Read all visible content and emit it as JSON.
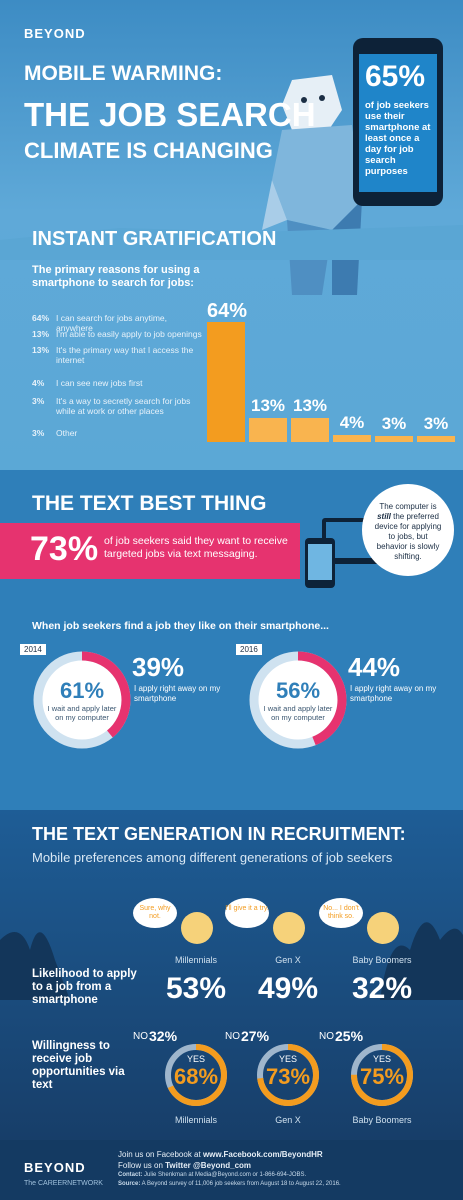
{
  "brand": {
    "logo": "BEYOND",
    "tagline": "The CAREERNETWORK"
  },
  "hero": {
    "kicker": "MOBILE WARMING:",
    "title_line1": "THE JOB SEARCH",
    "title_line2": "CLIMATE IS CHANGING",
    "phone_stat": "65%",
    "phone_text": "of job seekers use their smartphone at least once a day for job search purposes"
  },
  "gratification": {
    "heading": "INSTANT GRATIFICATION",
    "subheading": "The primary reasons for using a smartphone to search for jobs:",
    "reasons": [
      {
        "pct": "64%",
        "text": "I can search for jobs anytime, anywhere"
      },
      {
        "pct": "13%",
        "text": "I'm able to easily apply to job openings"
      },
      {
        "pct": "13%",
        "text": "It's the primary way that I access the internet"
      },
      {
        "pct": "4%",
        "text": "I can see new jobs first"
      },
      {
        "pct": "3%",
        "text": "It's a way to secretly search for jobs while at work or other places"
      },
      {
        "pct": "3%",
        "text": "Other"
      }
    ]
  },
  "chart_data": {
    "type": "bar",
    "categories": [
      "I can search for jobs anytime, anywhere",
      "I'm able to easily apply to job openings",
      "It's the primary way that I access the internet",
      "I can see new jobs first",
      "It's a way to secretly search for jobs while at work or other places",
      "Other"
    ],
    "values": [
      64,
      13,
      13,
      4,
      3,
      3
    ],
    "labels": [
      "64%",
      "13%",
      "13%",
      "4%",
      "3%",
      "3%"
    ]
  },
  "text_best": {
    "heading": "THE TEXT BEST THING",
    "stat": "73%",
    "text": "of job seekers said they want to receive targeted jobs via text messaging.",
    "bubble_pre": "The computer is ",
    "bubble_em": "still",
    "bubble_post": " the preferred device for applying to jobs, but behavior is slowly shifting."
  },
  "apply": {
    "intro": "When job seekers find a job they like on their smartphone...",
    "years": [
      {
        "year": "2014",
        "later_pct": "61%",
        "later_text": "I wait and apply later on my computer",
        "now_pct": "39%",
        "now_text": "I apply right away on my smartphone",
        "now_value": 39
      },
      {
        "year": "2016",
        "later_pct": "56%",
        "later_text": "I wait and apply later on my computer",
        "now_pct": "44%",
        "now_text": "I apply right away on my smartphone",
        "now_value": 44
      }
    ]
  },
  "generation": {
    "heading": "THE TEXT GENERATION IN RECRUITMENT:",
    "subheading": "Mobile preferences among different generations of job seekers",
    "likelihood_label": "Likelihood to apply to a job from a smartphone",
    "willingness_label": "Willingness to receive job opportunities via text",
    "groups": [
      {
        "name": "Millennials",
        "quote": "Sure, why not.",
        "likelihood": "53%",
        "no_label": "NO",
        "no_pct": "32%",
        "yes_label": "YES",
        "yes_pct": "68%",
        "yes_value": 68
      },
      {
        "name": "Gen X",
        "quote": "I'll give it a try.",
        "likelihood": "49%",
        "no_label": "NO",
        "no_pct": "27%",
        "yes_label": "YES",
        "yes_pct": "73%",
        "yes_value": 73
      },
      {
        "name": "Baby Boomers",
        "quote": "No... I don't think so.",
        "likelihood": "32%",
        "no_label": "NO",
        "no_pct": "25%",
        "yes_label": "YES",
        "yes_pct": "75%",
        "yes_value": 75
      }
    ]
  },
  "footer": {
    "facebook_pre": "Join us on Facebook at ",
    "facebook": "www.Facebook.com/BeyondHR",
    "twitter_pre": "Follow us on ",
    "twitter": "Twitter @Beyond_com",
    "contact_label": "Contact:",
    "contact": " Julie Shenkman at Media@Beyond.com or 1-866-694-JOBS.",
    "source_label": "Source:",
    "source": " A Beyond survey of 11,006 job seekers from August 18 to August 22, 2016."
  },
  "colors": {
    "orange": "#f39c1f",
    "pink": "#e6336f",
    "blue": "#2f7fb9",
    "navy": "#143a62"
  }
}
